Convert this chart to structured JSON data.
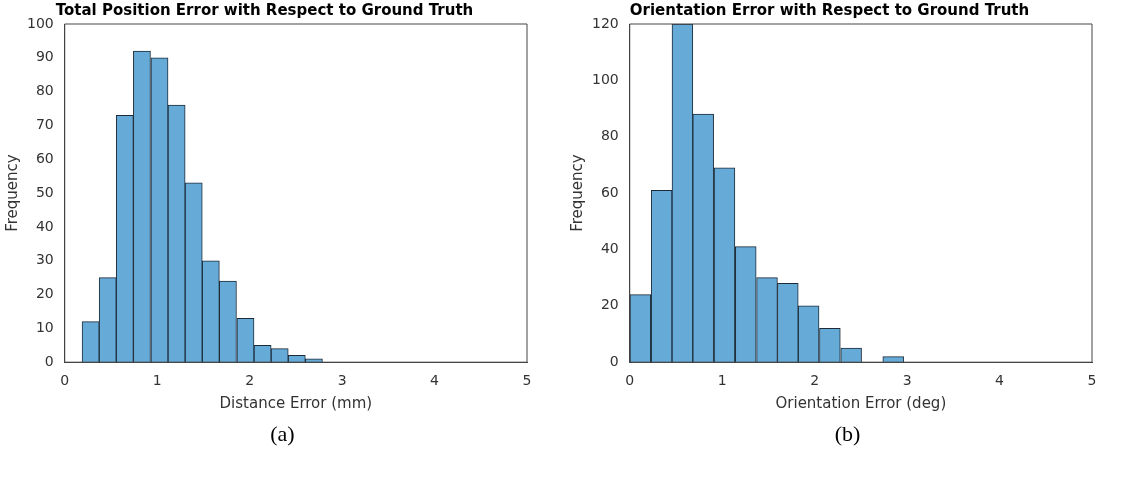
{
  "chart_data": [
    {
      "type": "histogram",
      "title": "Total Position Error with Respect to Ground Truth",
      "xlabel": "Distance Error (mm)",
      "ylabel": "Frequency",
      "color": "#66aad7",
      "bins": [
        0.19,
        0.37,
        0.56,
        0.74,
        0.93,
        1.12,
        1.3,
        1.49,
        1.67,
        1.86,
        2.05,
        2.23,
        2.42,
        2.6,
        2.79
      ],
      "values": [
        12,
        25,
        73,
        92,
        90,
        76,
        53,
        30,
        24,
        13,
        5,
        4,
        2,
        1
      ],
      "xlim": [
        0,
        5
      ],
      "xticks": [
        0,
        1,
        2,
        3,
        4,
        5
      ],
      "ylim": [
        0,
        100
      ],
      "yticks": [
        0,
        10,
        20,
        30,
        40,
        50,
        60,
        70,
        80,
        90,
        100
      ],
      "grid": false,
      "annotations": [
        "(a)"
      ]
    },
    {
      "type": "histogram",
      "title": "Orientation Error with Respect to Ground Truth",
      "xlabel": "Orientation Error (deg)",
      "ylabel": "Frequency",
      "color": "#66aad7",
      "bins": [
        0,
        0.23,
        0.46,
        0.68,
        0.91,
        1.14,
        1.37,
        1.6,
        1.82,
        2.05,
        2.28,
        2.51,
        2.74,
        2.96
      ],
      "values": [
        24,
        61,
        120,
        88,
        69,
        41,
        30,
        28,
        20,
        12,
        5,
        0,
        2
      ],
      "xlim": [
        0,
        5
      ],
      "xticks": [
        0,
        1,
        2,
        3,
        4,
        5
      ],
      "ylim": [
        0,
        120
      ],
      "yticks": [
        0,
        20,
        40,
        60,
        80,
        100,
        120
      ],
      "grid": false,
      "annotations": [
        "(b)"
      ]
    }
  ]
}
